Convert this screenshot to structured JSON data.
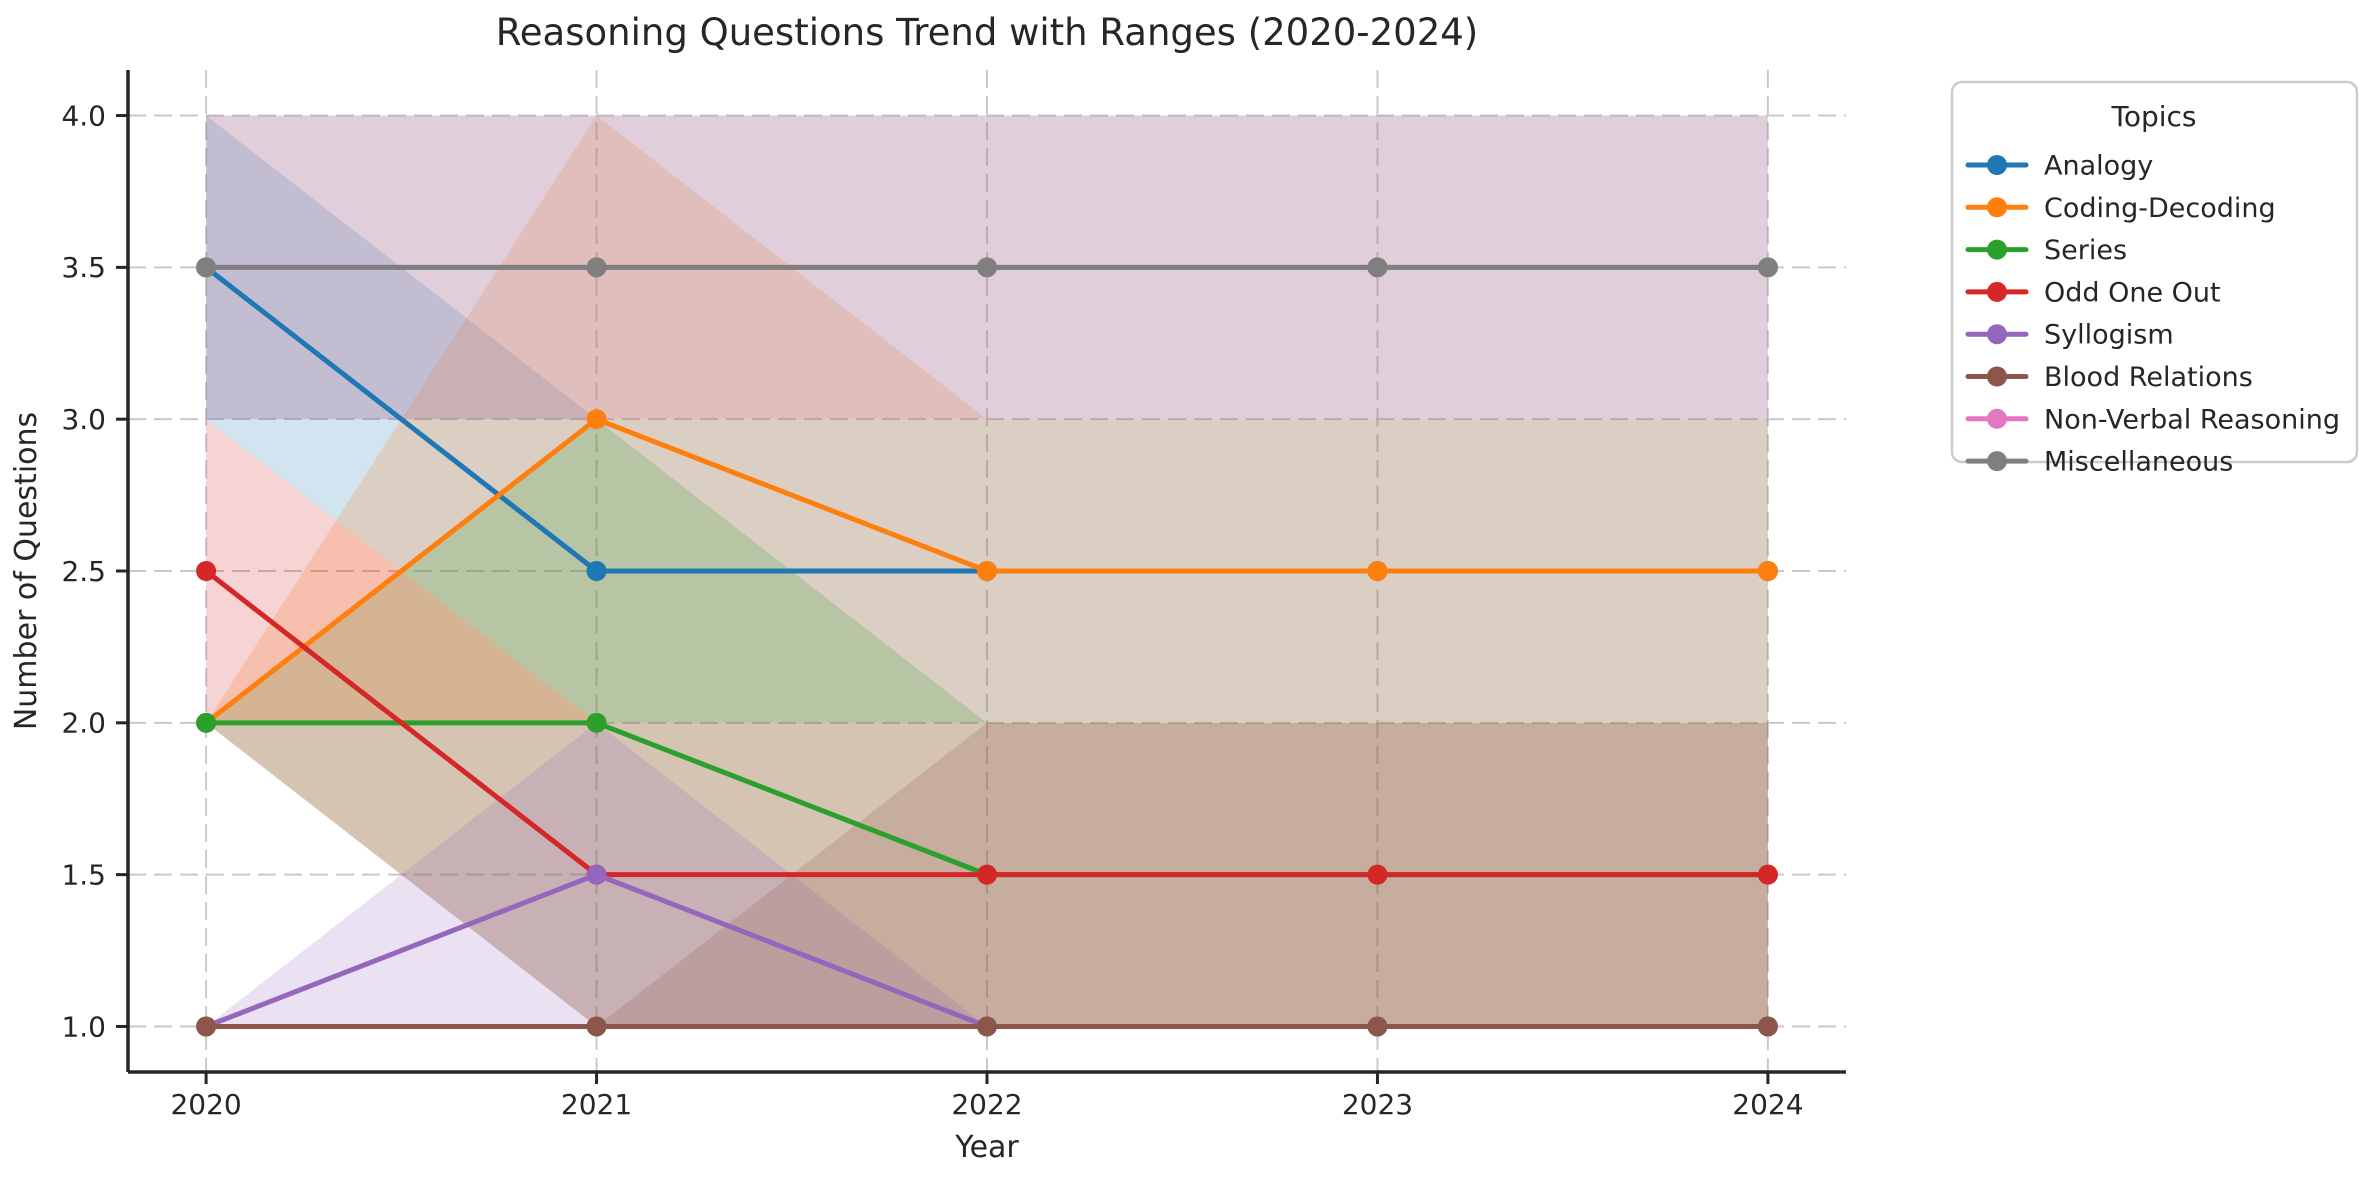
{
  "chart_data": {
    "type": "line",
    "title": "Reasoning Questions Trend with Ranges (2020-2024)",
    "xlabel": "Year",
    "ylabel": "Number of Questions",
    "x": [
      2020,
      2021,
      2022,
      2023,
      2024
    ],
    "xtick_labels": [
      "2020",
      "2021",
      "2022",
      "2023",
      "2024"
    ],
    "ytick_values": [
      1.0,
      1.5,
      2.0,
      2.5,
      3.0,
      3.5,
      4.0
    ],
    "ytick_labels": [
      "1.0",
      "1.5",
      "2.0",
      "2.5",
      "3.0",
      "3.5",
      "4.0"
    ],
    "xlim": [
      2019.8,
      2024.2
    ],
    "ylim": [
      0.85,
      4.15
    ],
    "grid": {
      "visible": true,
      "style": "dashed",
      "color": "#c9c9c9"
    },
    "band_alpha": 0.2,
    "legend": {
      "title": "Topics",
      "position": "outside-right"
    },
    "style": {
      "background": "#ffffff",
      "spine_color": "#262626",
      "text_color": "#262626",
      "legend_border": "#cccccc"
    },
    "series": [
      {
        "name": "Analogy",
        "color": "#1f77b4",
        "values": [
          3.5,
          2.5,
          2.5,
          2.5,
          2.5
        ],
        "range_min": [
          3,
          2,
          2,
          2,
          2
        ],
        "range_max": [
          4,
          3,
          3,
          3,
          3
        ]
      },
      {
        "name": "Coding-Decoding",
        "color": "#ff7f0e",
        "values": [
          2.0,
          3.0,
          2.5,
          2.5,
          2.5
        ],
        "range_min": [
          2,
          2,
          2,
          2,
          2
        ],
        "range_max": [
          2,
          4,
          3,
          3,
          3
        ]
      },
      {
        "name": "Series",
        "color": "#2ca02c",
        "values": [
          2.0,
          2.0,
          1.5,
          1.5,
          1.5
        ],
        "range_min": [
          2,
          1,
          1,
          1,
          1
        ],
        "range_max": [
          2,
          3,
          2,
          2,
          2
        ]
      },
      {
        "name": "Odd One Out",
        "color": "#d62728",
        "values": [
          2.5,
          1.5,
          1.5,
          1.5,
          1.5
        ],
        "range_min": [
          2,
          1,
          1,
          1,
          1
        ],
        "range_max": [
          3,
          2,
          2,
          2,
          2
        ]
      },
      {
        "name": "Syllogism",
        "color": "#9467bd",
        "values": [
          1.0,
          1.5,
          1.0,
          1.0,
          1.0
        ],
        "range_min": [
          1,
          1,
          1,
          1,
          1
        ],
        "range_max": [
          1,
          2,
          1,
          1,
          1
        ]
      },
      {
        "name": "Blood Relations",
        "color": "#8c564b",
        "values": [
          1.0,
          1.0,
          1.0,
          1.0,
          1.0
        ],
        "range_min": [
          1,
          1,
          1,
          1,
          1
        ],
        "range_max": [
          1,
          1,
          2,
          2,
          2
        ]
      },
      {
        "name": "Non-Verbal Reasoning",
        "color": "#e377c2",
        "values": [
          3.5,
          3.5,
          3.5,
          3.5,
          3.5
        ],
        "range_min": [
          3,
          3,
          3,
          3,
          3
        ],
        "range_max": [
          4,
          4,
          4,
          4,
          4
        ]
      },
      {
        "name": "Miscellaneous",
        "color": "#7f7f7f",
        "values": [
          3.5,
          3.5,
          3.5,
          3.5,
          3.5
        ],
        "range_min": [
          3,
          3,
          3,
          3,
          3
        ],
        "range_max": [
          4,
          4,
          4,
          4,
          4
        ]
      }
    ]
  }
}
